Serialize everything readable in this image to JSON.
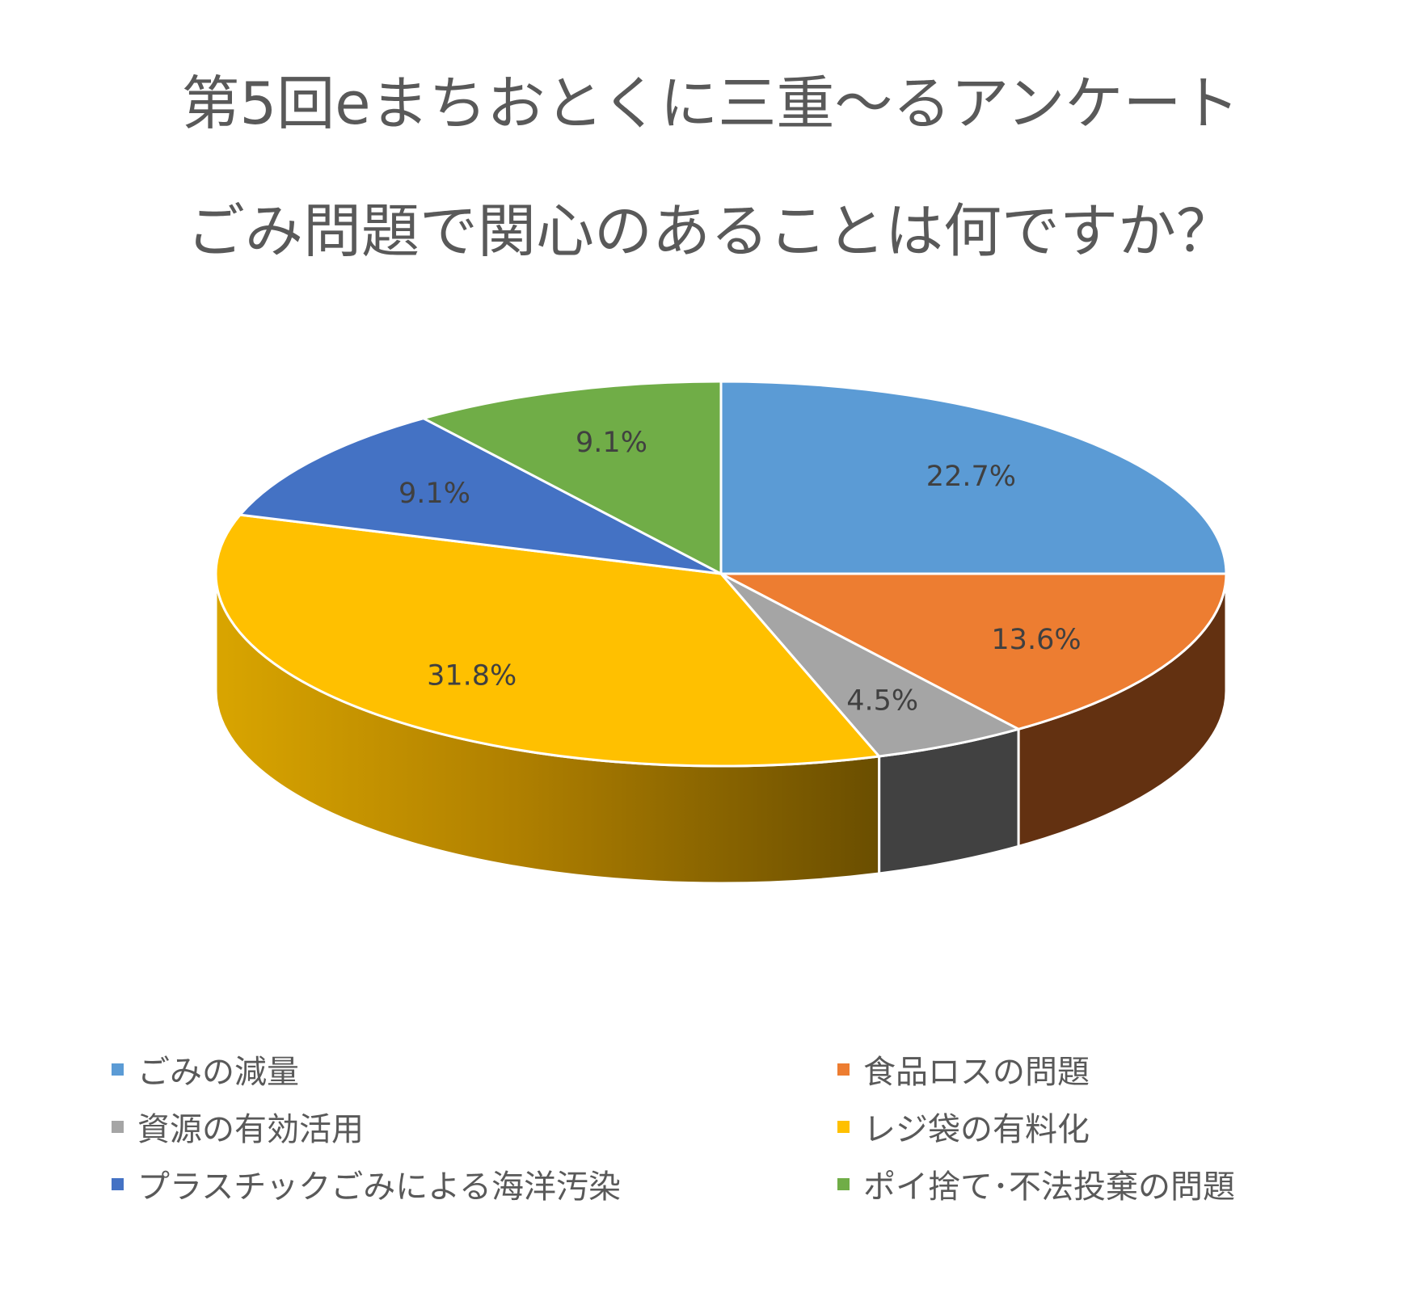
{
  "chart_data": {
    "type": "pie",
    "style": "3d",
    "title": "第5回eまちおとくに三重〜るアンケート",
    "subtitle": "ごみ問題で関心のあることは何ですか？",
    "categories": [
      "ごみの減量",
      "食品ロスの問題",
      "資源の有効活用",
      "レジ袋の有料化",
      "プラスチックごみによる海洋汚染",
      "ポイ捨て･不法投棄の問題"
    ],
    "values": [
      22.7,
      13.6,
      4.5,
      31.8,
      9.1,
      9.1
    ],
    "data_labels": [
      "22.7%",
      "13.6%",
      "4.5%",
      "31.8%",
      "9.1%",
      "9.1%"
    ],
    "colors": [
      "#5B9BD5",
      "#ED7D31",
      "#A5A5A5",
      "#FFC000",
      "#4472C4",
      "#70AD47"
    ],
    "side_colors": [
      "#3A6A97",
      "#633111",
      "#414141",
      "#C79600",
      "#2E4F88",
      "#4E7A32"
    ],
    "legend_position": "bottom",
    "grid": false
  }
}
